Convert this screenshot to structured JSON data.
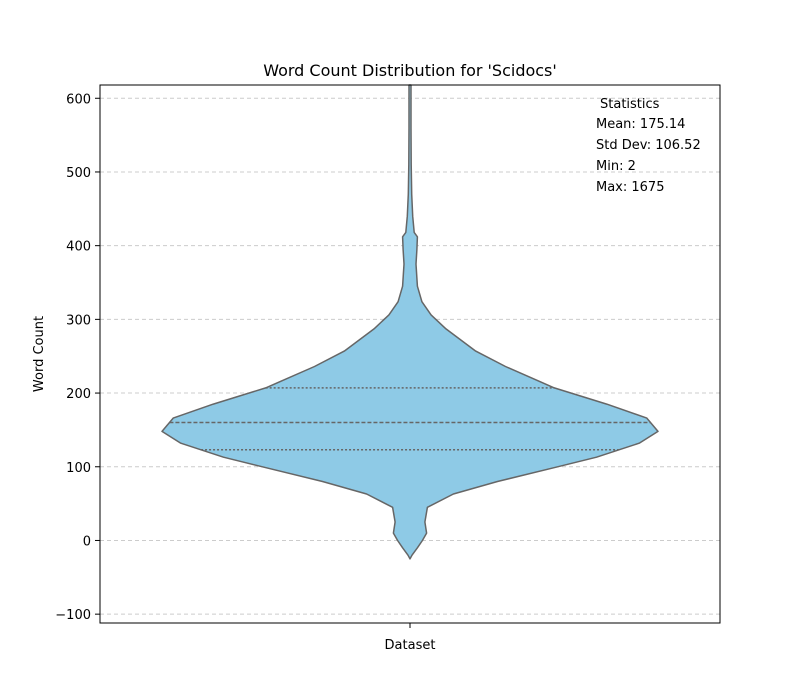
{
  "chart_data": {
    "type": "violin",
    "title": "Word Count Distribution for 'Scidocs'",
    "xlabel": "Dataset",
    "ylabel": "Word Count",
    "categories": [
      ""
    ],
    "ylim": [
      -112,
      618
    ],
    "yticks": [
      -100,
      0,
      100,
      200,
      300,
      400,
      500,
      600
    ],
    "grid": "y-dashed",
    "fill_color": "#8ecae6",
    "edge_color": "#666666",
    "quartiles": {
      "q1": 123,
      "median": 160,
      "q3": 207
    },
    "density_profile": [
      {
        "y": -25,
        "w": 0.0
      },
      {
        "y": -20,
        "w": 0.008
      },
      {
        "y": -10,
        "w": 0.03
      },
      {
        "y": 0,
        "w": 0.05
      },
      {
        "y": 10,
        "w": 0.067
      },
      {
        "y": 25,
        "w": 0.06
      },
      {
        "y": 45,
        "w": 0.07
      },
      {
        "y": 63,
        "w": 0.175
      },
      {
        "y": 80,
        "w": 0.353
      },
      {
        "y": 100,
        "w": 0.595
      },
      {
        "y": 113,
        "w": 0.752
      },
      {
        "y": 132,
        "w": 0.924
      },
      {
        "y": 148,
        "w": 1.0
      },
      {
        "y": 166,
        "w": 0.955
      },
      {
        "y": 185,
        "w": 0.793
      },
      {
        "y": 207,
        "w": 0.582
      },
      {
        "y": 236,
        "w": 0.385
      },
      {
        "y": 257,
        "w": 0.265
      },
      {
        "y": 287,
        "w": 0.145
      },
      {
        "y": 306,
        "w": 0.085
      },
      {
        "y": 324,
        "w": 0.048
      },
      {
        "y": 345,
        "w": 0.03
      },
      {
        "y": 375,
        "w": 0.024
      },
      {
        "y": 395,
        "w": 0.028
      },
      {
        "y": 412,
        "w": 0.03
      },
      {
        "y": 418,
        "w": 0.017
      },
      {
        "y": 440,
        "w": 0.011
      },
      {
        "y": 470,
        "w": 0.007
      },
      {
        "y": 510,
        "w": 0.005
      },
      {
        "y": 560,
        "w": 0.004
      },
      {
        "y": 618,
        "w": 0.004
      }
    ],
    "statistics": {
      "heading": "Statistics",
      "lines": [
        "Mean: 175.14",
        "Std Dev: 106.52",
        "Min: 2",
        "Max: 1675"
      ]
    }
  }
}
